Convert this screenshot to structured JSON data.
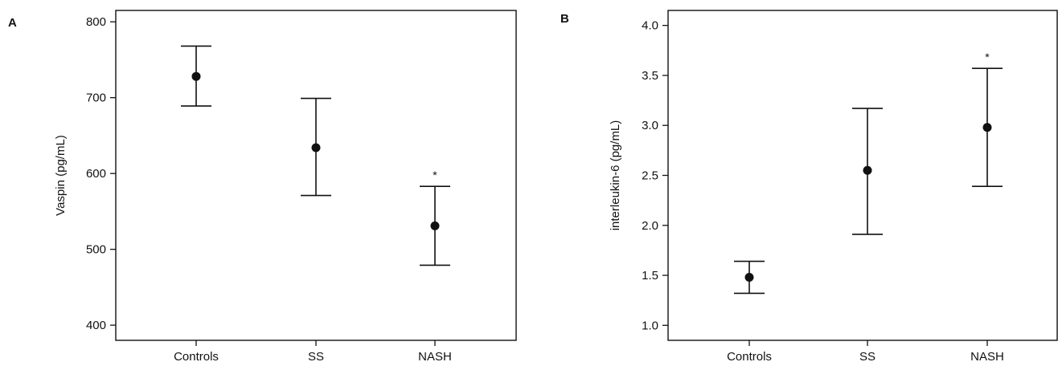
{
  "chart_data": [
    {
      "type": "scatter",
      "panel_label": "A",
      "title": "",
      "xlabel": "",
      "ylabel": "Vaspin (pg/mL)",
      "categories": [
        "Controls",
        "SS",
        "NASH"
      ],
      "ylim": [
        380,
        815
      ],
      "yticks": [
        400,
        500,
        600,
        700,
        800
      ],
      "series": [
        {
          "values": [
            728,
            634,
            531
          ],
          "error_low": [
            689,
            571,
            479
          ],
          "error_high": [
            768,
            699,
            583
          ],
          "annotations": [
            "",
            "",
            "*"
          ]
        }
      ],
      "grid": false,
      "legend": "none"
    },
    {
      "type": "scatter",
      "panel_label": "B",
      "title": "",
      "xlabel": "",
      "ylabel": "interleukin-6 (pg/mL)",
      "categories": [
        "Controls",
        "SS",
        "NASH"
      ],
      "ylim": [
        0.85,
        4.15
      ],
      "yticks": [
        "1.0",
        "1.5",
        "2.0",
        "2.5",
        "3.0",
        "3.5",
        "4.0"
      ],
      "series": [
        {
          "values": [
            1.48,
            2.55,
            2.98
          ],
          "error_low": [
            1.32,
            1.91,
            2.39
          ],
          "error_high": [
            1.64,
            3.17,
            3.57
          ],
          "annotations": [
            "",
            "",
            "*"
          ]
        }
      ],
      "grid": false,
      "legend": "none"
    }
  ]
}
